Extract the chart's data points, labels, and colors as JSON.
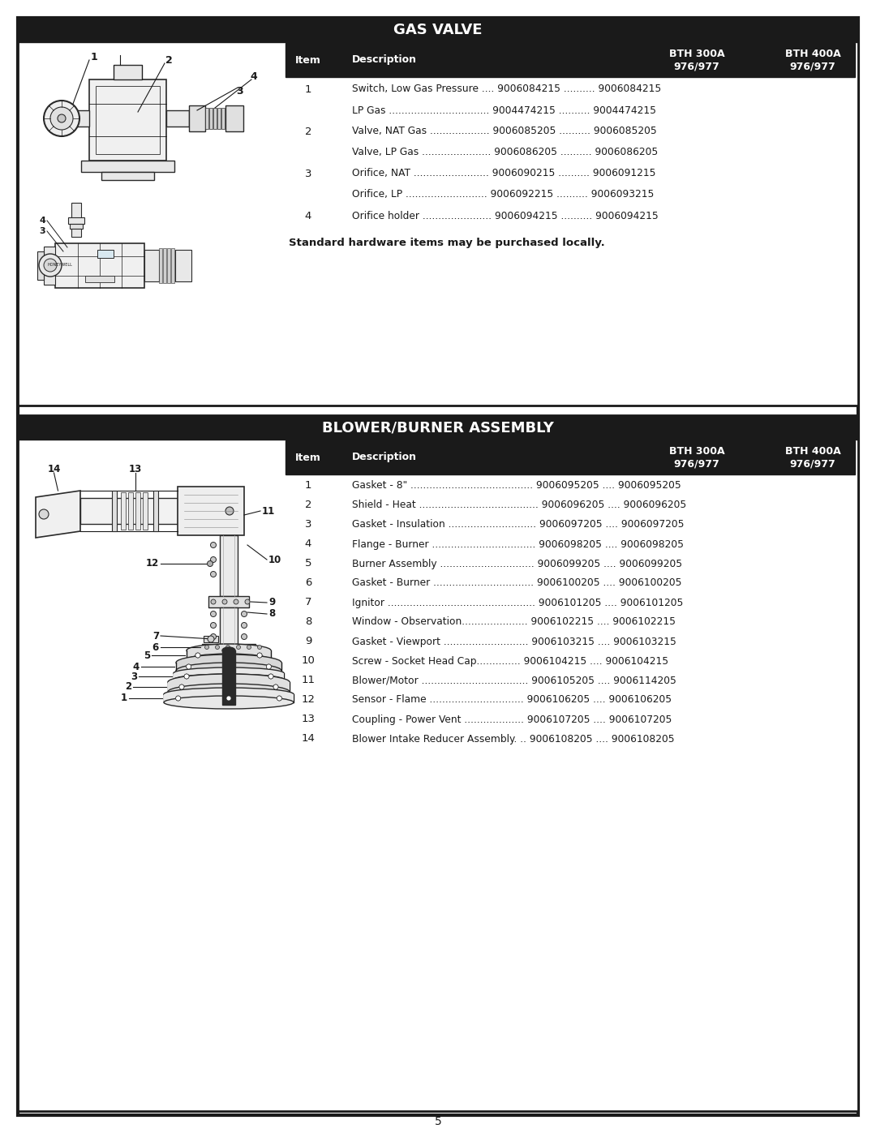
{
  "page_bg": "#ffffff",
  "border_color": "#1a1a1a",
  "header_bg": "#1a1a1a",
  "header_fg": "#ffffff",
  "draw_color": "#2a2a2a",
  "gas_valve": {
    "title": "GAS VALVE",
    "col_item": "Item",
    "col_desc": "Description",
    "col_bth300": "BTH 300A\n976/977",
    "col_bth400": "BTH 400A\n976/977",
    "rows": [
      {
        "item": "1",
        "desc": "Switch, Low Gas Pressure .... 9006084215 .......... 9006084215"
      },
      {
        "item": "",
        "desc": "LP Gas ................................ 9004474215 .......... 9004474215"
      },
      {
        "item": "2",
        "desc": "Valve, NAT Gas ................... 9006085205 .......... 9006085205"
      },
      {
        "item": "",
        "desc": "Valve, LP Gas ...................... 9006086205 .......... 9006086205"
      },
      {
        "item": "3",
        "desc": "Orifice, NAT ........................ 9006090215 .......... 9006091215"
      },
      {
        "item": "",
        "desc": "Orifice, LP .......................... 9006092215 .......... 9006093215"
      },
      {
        "item": "4",
        "desc": "Orifice holder ...................... 9006094215 .......... 9006094215"
      }
    ],
    "footnote": "Standard hardware items may be purchased locally."
  },
  "blower": {
    "title": "BLOWER/BURNER ASSEMBLY",
    "col_item": "Item",
    "col_desc": "Description",
    "col_bth300": "BTH 300A\n976/977",
    "col_bth400": "BTH 400A\n976/977",
    "rows": [
      {
        "item": "1",
        "desc": "Gasket - 8\" ....................................... 9006095205 .... 9006095205"
      },
      {
        "item": "2",
        "desc": "Shield - Heat ...................................... 9006096205 .... 9006096205"
      },
      {
        "item": "3",
        "desc": "Gasket - Insulation ............................ 9006097205 .... 9006097205"
      },
      {
        "item": "4",
        "desc": "Flange - Burner ................................. 9006098205 .... 9006098205"
      },
      {
        "item": "5",
        "desc": "Burner Assembly .............................. 9006099205 .... 9006099205"
      },
      {
        "item": "6",
        "desc": "Gasket - Burner ................................ 9006100205 .... 9006100205"
      },
      {
        "item": "7",
        "desc": "Ignitor ............................................... 9006101205 .... 9006101205"
      },
      {
        "item": "8",
        "desc": "Window - Observation..................... 9006102215 .... 9006102215"
      },
      {
        "item": "9",
        "desc": "Gasket - Viewport ........................... 9006103215 .... 9006103215"
      },
      {
        "item": "10",
        "desc": "Screw - Socket Head Cap.............. 9006104215 .... 9006104215"
      },
      {
        "item": "11",
        "desc": "Blower/Motor .................................. 9006105205 .... 9006114205"
      },
      {
        "item": "12",
        "desc": "Sensor - Flame .............................. 9006106205 .... 9006106205"
      },
      {
        "item": "13",
        "desc": "Coupling - Power Vent ................... 9006107205 .... 9006107205"
      },
      {
        "item": "14",
        "desc": "Blower Intake Reducer Assembly. .. 9006108205 .... 9006108205"
      }
    ]
  },
  "page_number": "5"
}
